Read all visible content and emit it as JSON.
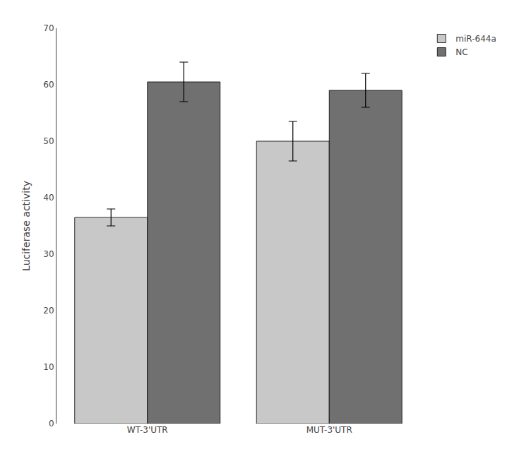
{
  "chart_data": {
    "type": "bar",
    "categories": [
      "WT-3'UTR",
      "MUT-3'UTR"
    ],
    "series": [
      {
        "name": "miR-644a",
        "color": "#c8c8c8",
        "values": [
          36.5,
          50.0
        ],
        "errors": [
          1.5,
          3.5
        ]
      },
      {
        "name": "NC",
        "color": "#707070",
        "values": [
          60.5,
          59.0
        ],
        "errors": [
          3.5,
          3.0
        ]
      }
    ],
    "ylabel": "Luciferase activity",
    "ylim": [
      0,
      70
    ],
    "yticks": [
      0,
      10,
      20,
      30,
      40,
      50,
      60,
      70
    ],
    "grid": false,
    "legend": "right"
  }
}
